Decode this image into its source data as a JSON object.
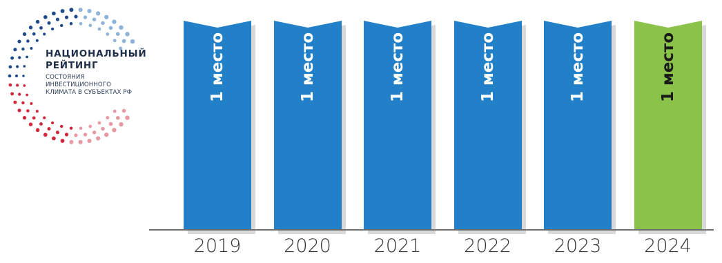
{
  "logo": {
    "title_line1": "НАЦИОНАЛЬНЫЙ",
    "title_line2": "РЕЙТИНГ",
    "sub_line1": "СОСТОЯНИЯ",
    "sub_line2": "ИНВЕСТИЦИОННОГО",
    "sub_line3": "КЛИМАТА В СУБЪЕКТАХ РФ",
    "colors": {
      "blue": "#1e4a8c",
      "light_blue": "#8fb3d9",
      "red": "#d0273a",
      "pink": "#e79aa4"
    }
  },
  "chart_data": {
    "type": "bar",
    "categories": [
      "2019",
      "2020",
      "2021",
      "2022",
      "2023",
      "2024"
    ],
    "bar_labels": [
      "1 место",
      "1 место",
      "1 место",
      "1 место",
      "1 место",
      "1 место"
    ],
    "values": [
      1,
      1,
      1,
      1,
      1,
      1
    ],
    "colors": [
      "#2280c8",
      "#2280c8",
      "#2280c8",
      "#2280c8",
      "#2280c8",
      "#8bc34a"
    ],
    "label_colors": [
      "#ffffff",
      "#ffffff",
      "#ffffff",
      "#ffffff",
      "#ffffff",
      "#1a1a1a"
    ],
    "shadow_color": "#d9d9d9"
  }
}
